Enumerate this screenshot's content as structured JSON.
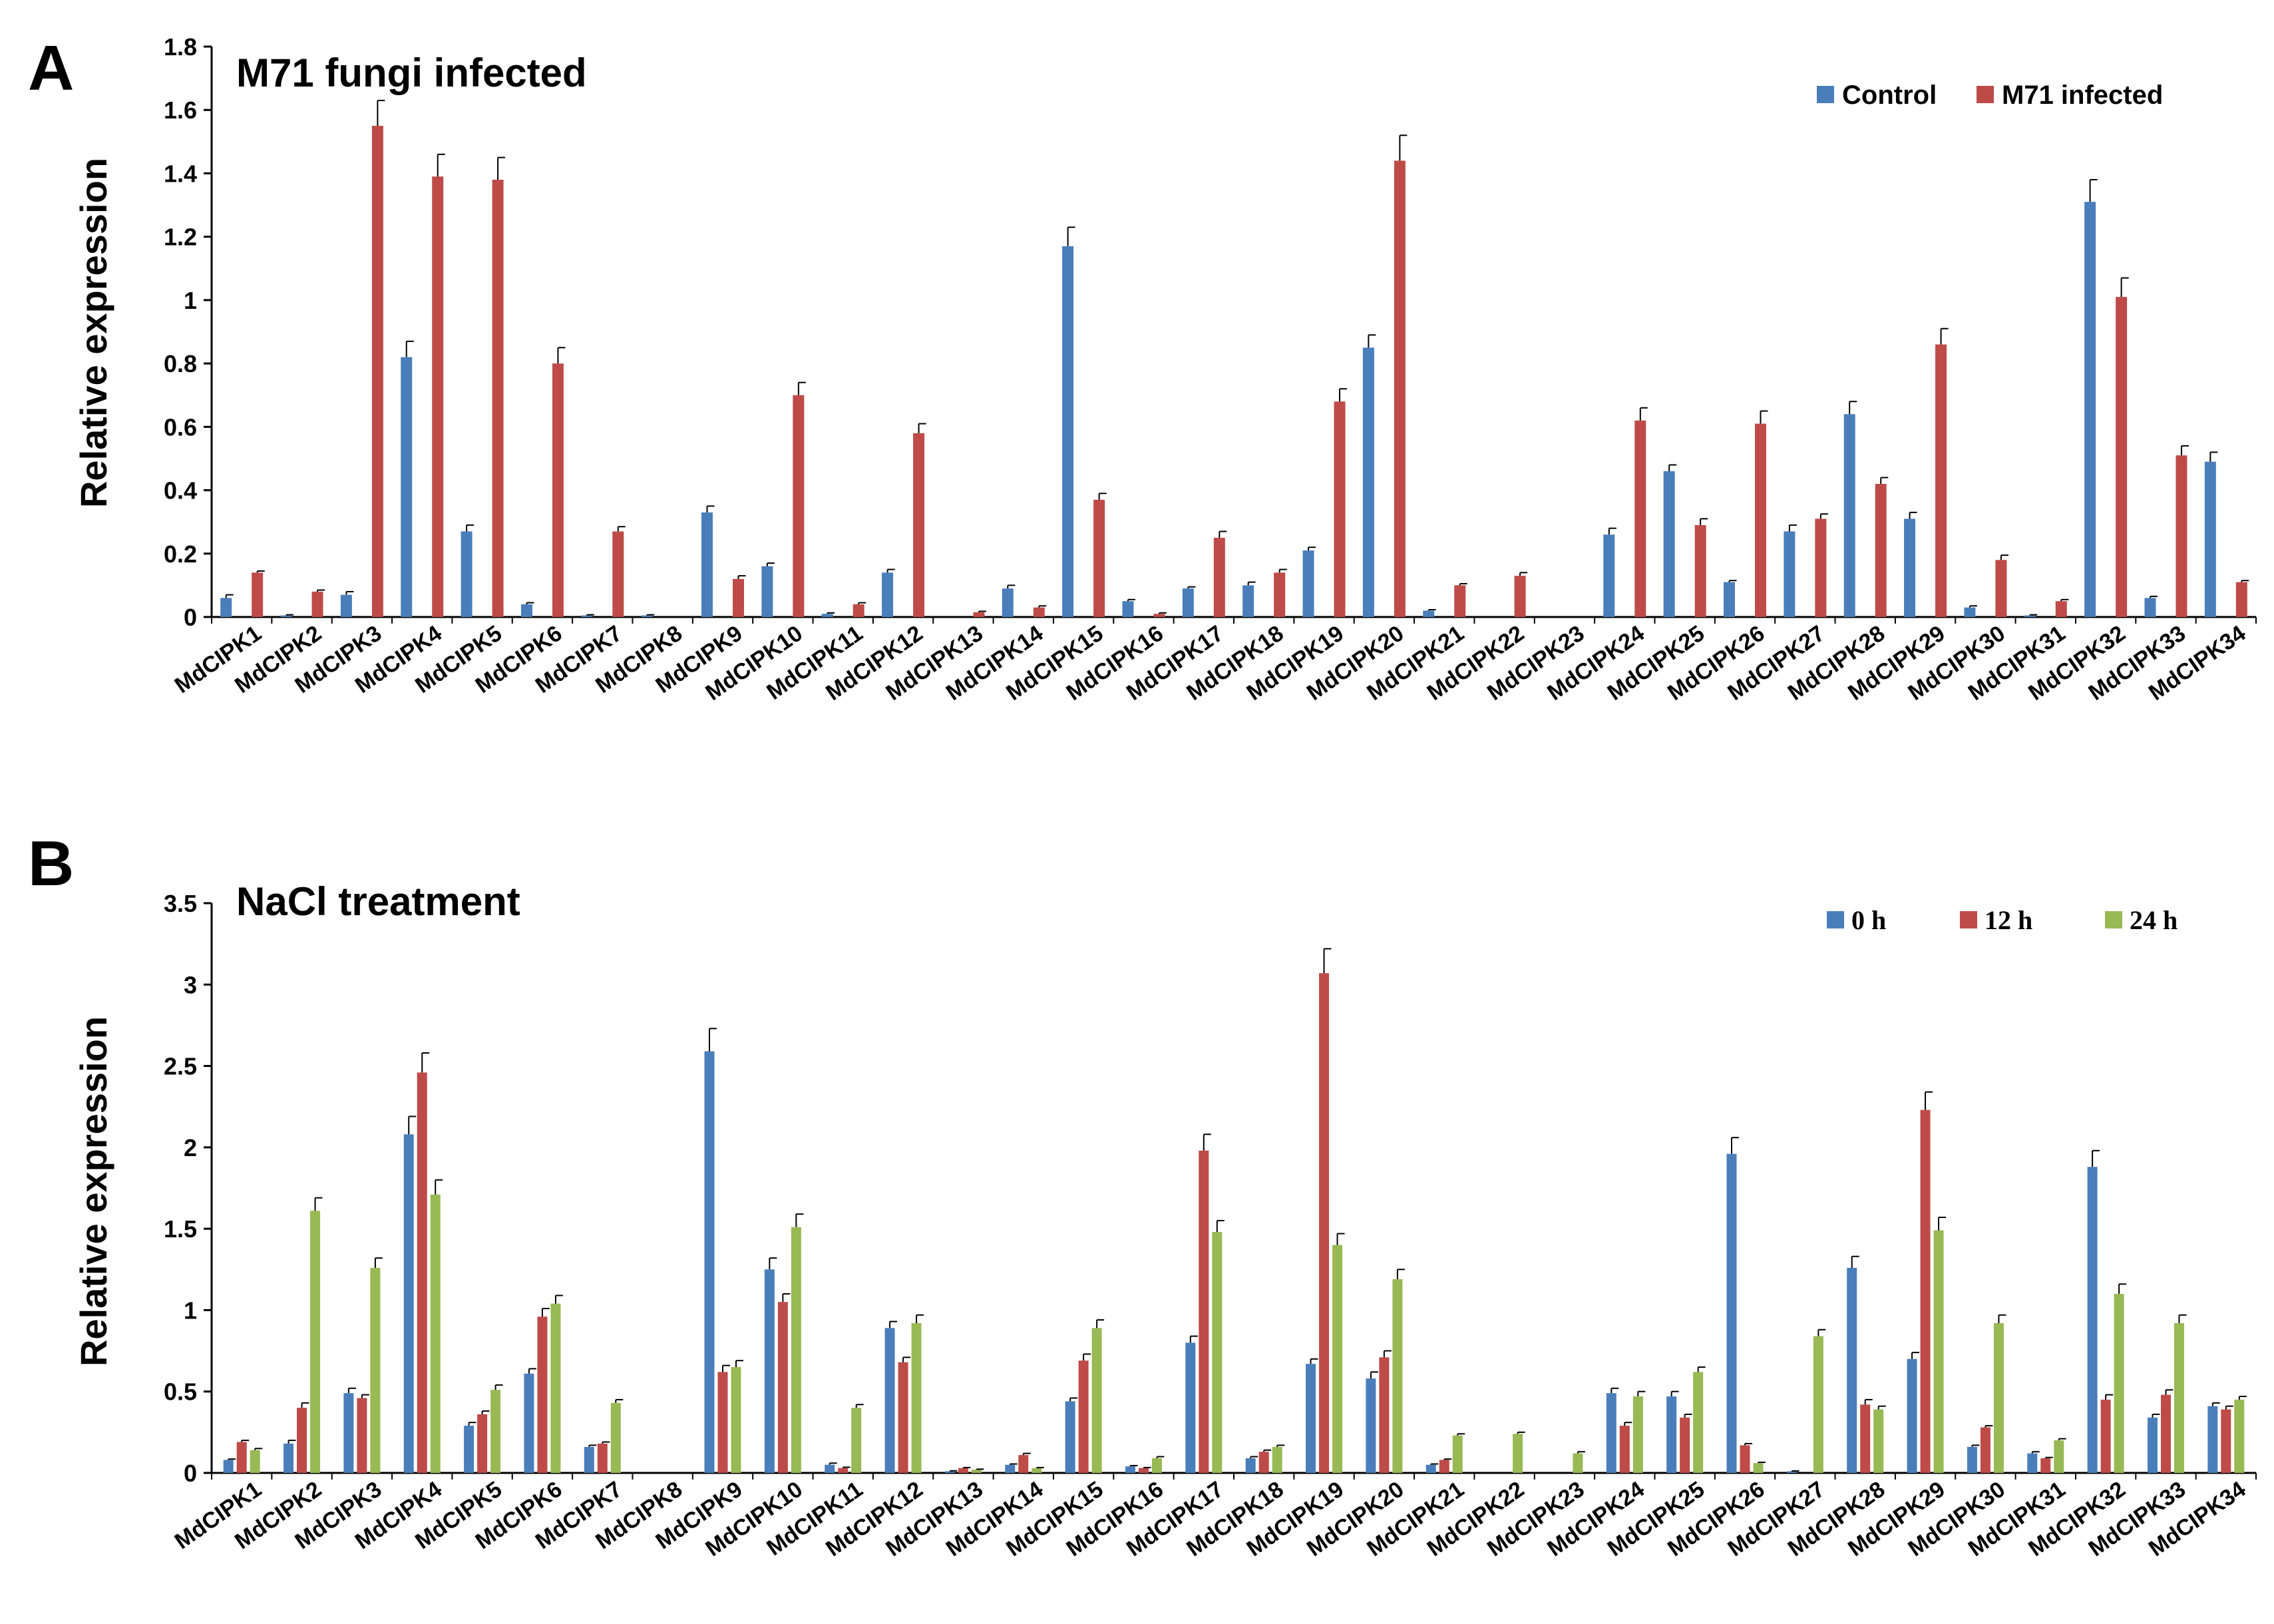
{
  "colors": {
    "blue": "#4a7ebb",
    "red": "#be4b48",
    "green": "#98b954"
  },
  "chart_data": [
    {
      "type": "bar",
      "panel_label": "A",
      "title": "M71 fungi infected",
      "ylabel": "Relative expression",
      "xlabel": "",
      "ylim": [
        0,
        1.8
      ],
      "yticks": [
        "0",
        "0.2",
        "0.4",
        "0.6",
        "0.8",
        "1",
        "1.2",
        "1.4",
        "1.6",
        "1.8"
      ],
      "legend_position": "top-right",
      "categories": [
        "MdCIPK1",
        "MdCIPK2",
        "MdCIPK3",
        "MdCIPK4",
        "MdCIPK5",
        "MdCIPK6",
        "MdCIPK7",
        "MdCIPK8",
        "MdCIPK9",
        "MdCIPK10",
        "MdCIPK11",
        "MdCIPK12",
        "MdCIPK13",
        "MdCIPK14",
        "MdCIPK15",
        "MdCIPK16",
        "MdCIPK17",
        "MdCIPK18",
        "MdCIPK19",
        "MdCIPK20",
        "MdCIPK21",
        "MdCIPK22",
        "MdCIPK23",
        "MdCIPK24",
        "MdCIPK25",
        "MdCIPK26",
        "MdCIPK27",
        "MdCIPK28",
        "MdCIPK29",
        "MdCIPK30",
        "MdCIPK31",
        "MdCIPK32",
        "MdCIPK33",
        "MdCIPK34"
      ],
      "series": [
        {
          "name": "Control",
          "color": "#4a7ebb",
          "values": [
            0.06,
            0.005,
            0.07,
            0.82,
            0.27,
            0.04,
            0.005,
            0.005,
            0.33,
            0.16,
            0.01,
            0.14,
            0,
            0.09,
            1.17,
            0.05,
            0.09,
            0.1,
            0.21,
            0.85,
            0.02,
            0,
            0,
            0.26,
            0.46,
            0.11,
            0.27,
            0.64,
            0.31,
            0.03,
            0.005,
            1.31,
            0.06,
            0.49
          ],
          "errors": [
            0.01,
            0.002,
            0.01,
            0.05,
            0.02,
            0.005,
            0.002,
            0.002,
            0.02,
            0.01,
            0.003,
            0.01,
            0,
            0.01,
            0.06,
            0.005,
            0.005,
            0.01,
            0.01,
            0.04,
            0.003,
            0,
            0,
            0.02,
            0.02,
            0.005,
            0.02,
            0.04,
            0.02,
            0.005,
            0.002,
            0.07,
            0.005,
            0.03
          ]
        },
        {
          "name": "M71 infected",
          "color": "#be4b48",
          "values": [
            0.14,
            0.08,
            1.55,
            1.39,
            1.38,
            0.8,
            0.27,
            0,
            0.12,
            0.7,
            0.04,
            0.58,
            0.015,
            0.03,
            0.37,
            0.01,
            0.25,
            0.14,
            0.68,
            1.44,
            0.1,
            0.13,
            0,
            0.62,
            0.29,
            0.61,
            0.31,
            0.42,
            0.86,
            0.18,
            0.05,
            1.01,
            0.51,
            0.11
          ],
          "errors": [
            0.005,
            0.005,
            0.08,
            0.07,
            0.07,
            0.05,
            0.015,
            0,
            0.01,
            0.04,
            0.005,
            0.03,
            0.003,
            0.005,
            0.02,
            0.003,
            0.02,
            0.01,
            0.04,
            0.08,
            0.005,
            0.01,
            0,
            0.04,
            0.02,
            0.04,
            0.015,
            0.02,
            0.05,
            0.015,
            0.005,
            0.06,
            0.03,
            0.005
          ]
        }
      ]
    },
    {
      "type": "bar",
      "panel_label": "B",
      "title": "NaCl treatment",
      "ylabel": "Relative expression",
      "xlabel": "",
      "ylim": [
        0,
        3.5
      ],
      "yticks": [
        "0",
        "0.5",
        "1",
        "1.5",
        "2",
        "2.5",
        "3",
        "3.5"
      ],
      "legend_position": "top-right",
      "categories": [
        "MdCIPK1",
        "MdCIPK2",
        "MdCIPK3",
        "MdCIPK4",
        "MdCIPK5",
        "MdCIPK6",
        "MdCIPK7",
        "MdCIPK8",
        "MdCIPK9",
        "MdCIPK10",
        "MdCIPK11",
        "MdCIPK12",
        "MdCIPK13",
        "MdCIPK14",
        "MdCIPK15",
        "MdCIPK16",
        "MdCIPK17",
        "MdCIPK18",
        "MdCIPK19",
        "MdCIPK20",
        "MdCIPK21",
        "MdCIPK22",
        "MdCIPK23",
        "MdCIPK24",
        "MdCIPK25",
        "MdCIPK26",
        "MdCIPK27",
        "MdCIPK28",
        "MdCIPK29",
        "MdCIPK30",
        "MdCIPK31",
        "MdCIPK32",
        "MdCIPK33",
        "MdCIPK34"
      ],
      "series": [
        {
          "name": "0 h",
          "color": "#4a7ebb",
          "values": [
            0.08,
            0.18,
            0.49,
            2.08,
            0.29,
            0.61,
            0.16,
            0,
            2.59,
            1.25,
            0.05,
            0.89,
            0.01,
            0.05,
            0.44,
            0.04,
            0.8,
            0.09,
            0.67,
            0.58,
            0.05,
            0,
            0,
            0.49,
            0.47,
            1.96,
            0.01,
            1.26,
            0.7,
            0.16,
            0.12,
            1.88,
            0.34,
            0.41
          ],
          "errors": [
            0.005,
            0.02,
            0.03,
            0.11,
            0.02,
            0.03,
            0.01,
            0,
            0.14,
            0.07,
            0.01,
            0.04,
            0.003,
            0.005,
            0.02,
            0.005,
            0.04,
            0.01,
            0.03,
            0.04,
            0.005,
            0,
            0,
            0.03,
            0.03,
            0.1,
            0.002,
            0.07,
            0.04,
            0.01,
            0.01,
            0.1,
            0.02,
            0.02
          ]
        },
        {
          "name": "12 h",
          "color": "#be4b48",
          "values": [
            0.19,
            0.4,
            0.46,
            2.46,
            0.36,
            0.96,
            0.18,
            0,
            0.62,
            1.05,
            0.03,
            0.68,
            0.03,
            0.11,
            0.69,
            0.03,
            1.98,
            0.13,
            3.07,
            0.71,
            0.08,
            0,
            0,
            0.29,
            0.34,
            0.17,
            0,
            0.42,
            2.23,
            0.28,
            0.09,
            0.45,
            0.48,
            0.39
          ],
          "errors": [
            0.01,
            0.03,
            0.02,
            0.12,
            0.02,
            0.05,
            0.01,
            0,
            0.04,
            0.05,
            0.005,
            0.03,
            0.003,
            0.01,
            0.04,
            0.003,
            0.1,
            0.01,
            0.15,
            0.04,
            0.005,
            0,
            0,
            0.02,
            0.02,
            0.01,
            0,
            0.03,
            0.11,
            0.01,
            0.005,
            0.03,
            0.03,
            0.02
          ]
        },
        {
          "name": "24 h",
          "color": "#98b954",
          "values": [
            0.14,
            1.61,
            1.26,
            1.71,
            0.51,
            1.04,
            0.43,
            0,
            0.65,
            1.51,
            0.4,
            0.92,
            0.02,
            0.03,
            0.89,
            0.09,
            1.48,
            0.16,
            1.4,
            1.19,
            0.23,
            0.24,
            0.12,
            0.47,
            0.62,
            0.06,
            0.84,
            0.39,
            1.49,
            0.92,
            0.2,
            1.1,
            0.92,
            0.45
          ],
          "errors": [
            0.01,
            0.08,
            0.06,
            0.09,
            0.03,
            0.05,
            0.02,
            0,
            0.04,
            0.08,
            0.02,
            0.05,
            0.003,
            0.003,
            0.05,
            0.01,
            0.07,
            0.01,
            0.07,
            0.06,
            0.01,
            0.01,
            0.01,
            0.03,
            0.03,
            0.005,
            0.04,
            0.02,
            0.08,
            0.05,
            0.01,
            0.06,
            0.05,
            0.02
          ]
        }
      ]
    }
  ]
}
